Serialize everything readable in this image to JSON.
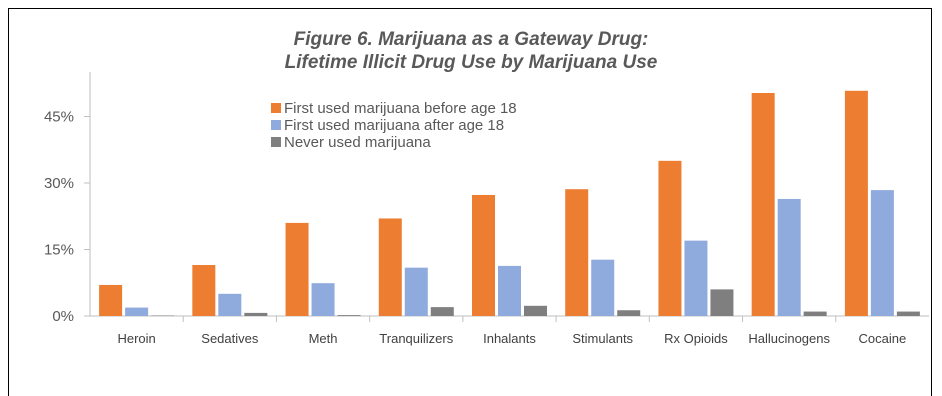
{
  "chart_data": {
    "type": "bar",
    "title": [
      "Figure 6. Marijuana as a Gateway Drug:",
      "Lifetime Illicit Drug Use by Marijuana Use"
    ],
    "categories": [
      "Heroin",
      "Sedatives",
      "Meth",
      "Tranquilizers",
      "Inhalants",
      "Stimulants",
      "Rx Opioids",
      "Hallucinogens",
      "Cocaine"
    ],
    "series": [
      {
        "name": "First used marijuana before age 18",
        "color": "#ed7d31",
        "values": [
          7.0,
          11.5,
          21.0,
          22.0,
          27.3,
          28.6,
          35.0,
          50.3,
          50.8
        ]
      },
      {
        "name": "First used marijuana after age 18",
        "color": "#8faadc",
        "values": [
          1.9,
          5.0,
          7.4,
          10.9,
          11.3,
          12.7,
          17.0,
          26.4,
          28.4
        ]
      },
      {
        "name": "Never used marijuana",
        "color": "#7f7f7f",
        "values": [
          0.1,
          0.7,
          0.2,
          2.0,
          2.3,
          1.3,
          6.0,
          1.0,
          1.0
        ]
      }
    ],
    "yticks": [
      "0%",
      "15%",
      "30%",
      "45%"
    ],
    "ytick_values": [
      0,
      15,
      30,
      45
    ],
    "ylim": [
      0,
      51
    ],
    "legend_position": "top-left inside plot",
    "grid": false
  }
}
